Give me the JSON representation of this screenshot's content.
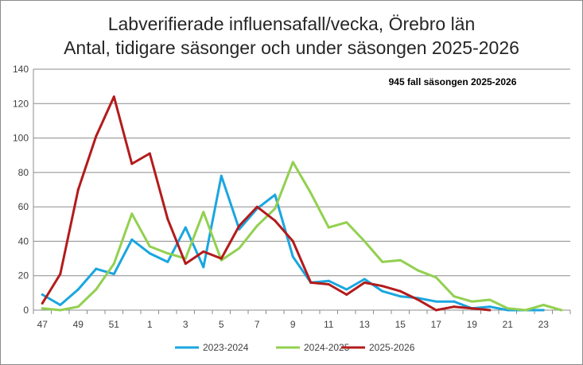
{
  "chart_data": {
    "type": "line",
    "title": "Labverifierade influensafall/vecka, Örebro län",
    "subtitle": "Antal, tidigare säsonger och under säsongen 2025-2026",
    "annotation": "945 fall säsongen 2025-2026",
    "xlabel": "",
    "ylabel": "",
    "ylim": [
      0,
      140
    ],
    "yticks": [
      0,
      20,
      40,
      60,
      80,
      100,
      120,
      140
    ],
    "categories": [
      "47",
      "48",
      "49",
      "50",
      "51",
      "52",
      "1",
      "2",
      "3",
      "4",
      "5",
      "6",
      "7",
      "8",
      "9",
      "10",
      "11",
      "12",
      "13",
      "14",
      "15",
      "16",
      "17",
      "18",
      "19",
      "20",
      "21",
      "22",
      "23",
      "24"
    ],
    "xtick_labels": [
      "47",
      "49",
      "51",
      "1",
      "3",
      "5",
      "7",
      "9",
      "11",
      "13",
      "15",
      "17",
      "19",
      "21",
      "23"
    ],
    "grid": "horizontal",
    "legend_position": "bottom",
    "series": [
      {
        "name": "2023-2024",
        "color": "#1aa6e0",
        "values": [
          9,
          3,
          12,
          24,
          21,
          41,
          33,
          28,
          48,
          25,
          78,
          47,
          59,
          67,
          31,
          16,
          17,
          12,
          18,
          11,
          8,
          7,
          5,
          5,
          1,
          2,
          0,
          0,
          0,
          null
        ]
      },
      {
        "name": "2024-2025",
        "color": "#92d050",
        "values": [
          1,
          0,
          2,
          12,
          27,
          56,
          37,
          33,
          30,
          57,
          29,
          36,
          49,
          59,
          86,
          68,
          48,
          51,
          40,
          28,
          29,
          23,
          19,
          8,
          5,
          6,
          1,
          0,
          3,
          0
        ]
      },
      {
        "name": "2025-2026",
        "color": "#b31b1b",
        "values": [
          4,
          21,
          70,
          101,
          124,
          85,
          91,
          53,
          27,
          34,
          30,
          49,
          60,
          52,
          40,
          16,
          15,
          9,
          16,
          14,
          11,
          6,
          0,
          2,
          1,
          0,
          null,
          null,
          null,
          null
        ]
      }
    ]
  }
}
